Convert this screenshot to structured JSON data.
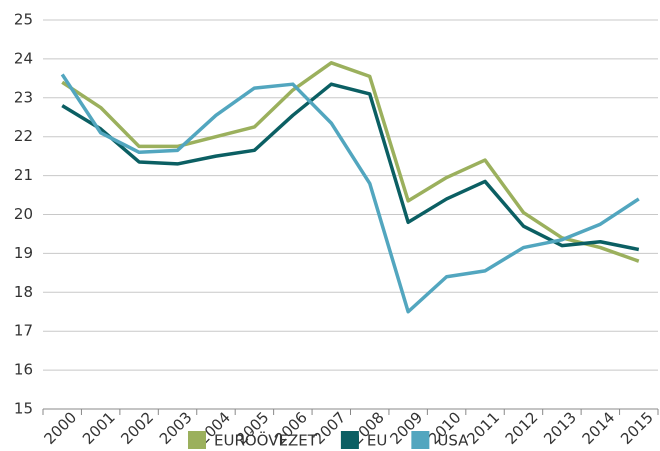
{
  "chart_data": {
    "type": "line",
    "categories": [
      "2000",
      "2001",
      "2002",
      "2003",
      "2004",
      "2005",
      "2006",
      "2007",
      "2008",
      "2009",
      "2010",
      "2011",
      "2012",
      "2013",
      "2014",
      "2015"
    ],
    "series": [
      {
        "name": "EURÓÖVEZET",
        "color": "#9bb05d",
        "values": [
          23.4,
          22.75,
          21.75,
          21.75,
          22.0,
          22.25,
          23.2,
          23.9,
          23.55,
          20.35,
          20.95,
          21.4,
          20.05,
          19.4,
          19.15,
          18.8
        ]
      },
      {
        "name": "EU",
        "color": "#0b5f63",
        "values": [
          22.8,
          22.2,
          21.35,
          21.3,
          21.5,
          21.65,
          22.55,
          23.35,
          23.1,
          19.8,
          20.4,
          20.85,
          19.7,
          19.2,
          19.3,
          19.1
        ]
      },
      {
        "name": "USA",
        "color": "#52a6bf",
        "values": [
          23.6,
          22.1,
          21.6,
          21.65,
          22.55,
          23.25,
          23.35,
          22.35,
          20.8,
          17.5,
          18.4,
          18.55,
          19.15,
          19.35,
          19.75,
          20.4
        ]
      }
    ],
    "ylim": [
      15,
      25
    ],
    "yticks": [
      15,
      16,
      17,
      18,
      19,
      20,
      21,
      22,
      23,
      24,
      25
    ],
    "grid": true,
    "legend": "bottom"
  }
}
